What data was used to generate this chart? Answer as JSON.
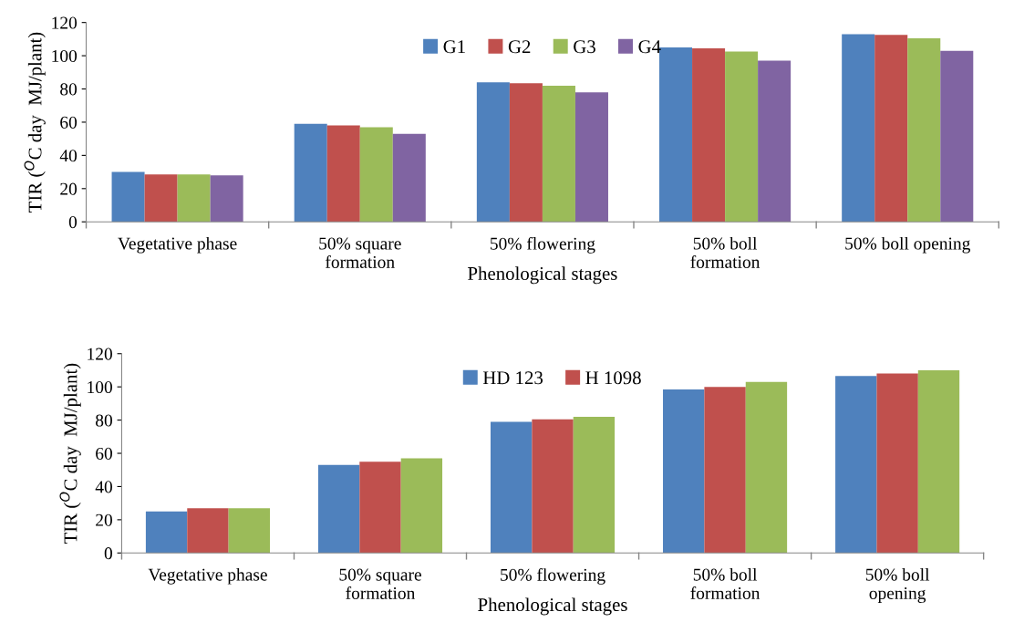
{
  "chart_data": [
    {
      "type": "bar",
      "xlabel": "Phenological stages",
      "ylabel": "TIR ($^{O}$C day  MJ/plant)",
      "categories": [
        "Vegetative phase",
        "50% square\nformation",
        "50% flowering",
        "50% boll\nformation",
        "50% boll opening"
      ],
      "series": [
        {
          "name": "G1",
          "color": "#4f81bd",
          "values": [
            30,
            59,
            84,
            105,
            113
          ]
        },
        {
          "name": "G2",
          "color": "#c0504d",
          "values": [
            28.5,
            58,
            83.5,
            104.5,
            112.5
          ]
        },
        {
          "name": "G3",
          "color": "#9bbb59",
          "values": [
            28.5,
            57,
            82,
            102.5,
            110.5
          ]
        },
        {
          "name": "G4",
          "color": "#8064a2",
          "values": [
            28,
            53,
            78,
            97,
            103
          ]
        }
      ],
      "ylim": [
        0,
        120
      ],
      "yticks": [
        0,
        20,
        40,
        60,
        80,
        100,
        120
      ],
      "grid": false,
      "legend": "top"
    },
    {
      "type": "bar",
      "xlabel": "Phenological stages",
      "ylabel": "TIR ($^{O}$C day  MJ/plant)",
      "categories": [
        "Vegetative phase",
        "50% square\nformation",
        "50% flowering",
        "50% boll\nformation",
        "50% boll\nopening"
      ],
      "series": [
        {
          "name": "HD 123",
          "color": "#4f81bd",
          "values": [
            25,
            53,
            79,
            98.5,
            106.5
          ]
        },
        {
          "name": "H 1098",
          "color": "#c0504d",
          "values": [
            27,
            55,
            80.5,
            100,
            108
          ]
        },
        {
          "color": "#9bbb59",
          "values": [
            27,
            57,
            82,
            103,
            110
          ]
        }
      ],
      "ylim": [
        0,
        120
      ],
      "yticks": [
        0,
        20,
        40,
        60,
        80,
        100,
        120
      ],
      "grid": false,
      "legend": "top"
    }
  ]
}
